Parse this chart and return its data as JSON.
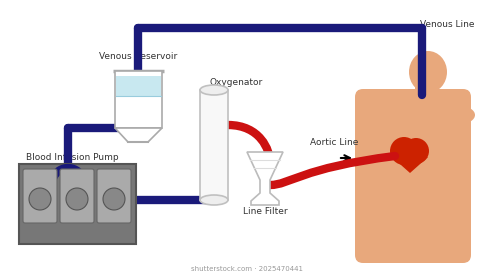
{
  "background_color": "#ffffff",
  "venous_line_color": "#1a1a7a",
  "aortic_line_color": "#cc1111",
  "body_color": "#e8a87c",
  "heart_color": "#cc2200",
  "pump_body_color": "#777777",
  "pump_roller_bg": "#aaaaaa",
  "pump_roller_inner": "#888888",
  "reservoir_liquid": "#c8e8f0",
  "oxygenator_color": "#f5f5f5",
  "labels": {
    "venous_reservoir": "Venous Reservoir",
    "oxygenator": "Oxygenator",
    "blood_pump": "Blood Infusion Pump",
    "line_filter": "Line Filter",
    "venous_line": "Venous Line",
    "aortic_line": "Aortic Line"
  },
  "label_fontsize": 6.5,
  "tube_lw": 6
}
